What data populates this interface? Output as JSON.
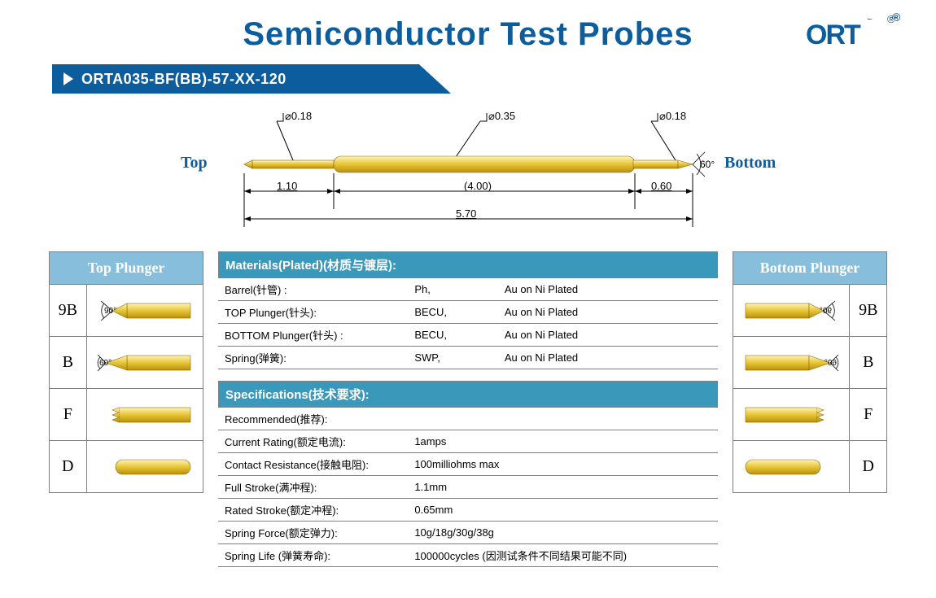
{
  "colors": {
    "brand_blue": "#0b5d9e",
    "header_teal": "#3a98bb",
    "plunger_header": "#86bedc",
    "gold_light": "#f6da52",
    "gold_dark": "#caa218",
    "outline": "#8a6b10",
    "grid_border": "#808080"
  },
  "title": "Semiconductor  Test  Probes",
  "logo_text": "ORT",
  "part_number": "ORTA035-BF(BB)-57-XX-120",
  "diagram": {
    "top_label": "Top",
    "bottom_label": "Bottom",
    "dia_top": "⌀0.18",
    "dia_barrel": "⌀0.35",
    "dia_bottom": "⌀0.18",
    "len_top": "1.10",
    "len_barrel": "(4.00)",
    "len_bottom": "0.60",
    "len_total": "5.70",
    "bottom_angle": "60°"
  },
  "top_plunger": {
    "header": "Top Plunger",
    "rows": [
      {
        "code": "9B",
        "tip": "chisel90",
        "angle": "90°"
      },
      {
        "code": "B",
        "tip": "cone60",
        "angle": "60°"
      },
      {
        "code": "F",
        "tip": "crown",
        "angle": ""
      },
      {
        "code": "D",
        "tip": "flat",
        "angle": ""
      }
    ]
  },
  "bottom_plunger": {
    "header": "Bottom Plunger",
    "rows": [
      {
        "code": "9B",
        "tip": "chisel90",
        "angle": "90°"
      },
      {
        "code": "B",
        "tip": "cone60",
        "angle": "60°"
      },
      {
        "code": "F",
        "tip": "crown",
        "angle": ""
      },
      {
        "code": "D",
        "tip": "flat",
        "angle": ""
      }
    ]
  },
  "materials": {
    "header": "Materials(Plated)(材质与镀层):",
    "rows": [
      [
        "Barrel(针管) :",
        "Ph,",
        "Au on Ni Plated"
      ],
      [
        "TOP Plunger(针头):",
        "BECU,",
        "Au on Ni Plated"
      ],
      [
        "BOTTOM Plunger(针头) :",
        "BECU,",
        "Au on Ni Plated"
      ],
      [
        "Spring(弹簧):",
        "SWP,",
        "Au on Ni Plated"
      ]
    ]
  },
  "specifications": {
    "header": "Specifications(技术要求):",
    "rows": [
      [
        "Recommended(推荐):",
        ""
      ],
      [
        "Current Rating(额定电流):",
        "1amps"
      ],
      [
        "Contact Resistance(接触电阻):",
        "100milliohms max"
      ],
      [
        "Full Stroke(满冲程):",
        "1.1mm"
      ],
      [
        "Rated Stroke(额定冲程):",
        "0.65mm"
      ],
      [
        "Spring Force(额定弹力):",
        "10g/18g/30g/38g"
      ],
      [
        "Spring Life (弹簧寿命):",
        "100000cycles (因测试条件不同结果可能不同)"
      ]
    ]
  }
}
